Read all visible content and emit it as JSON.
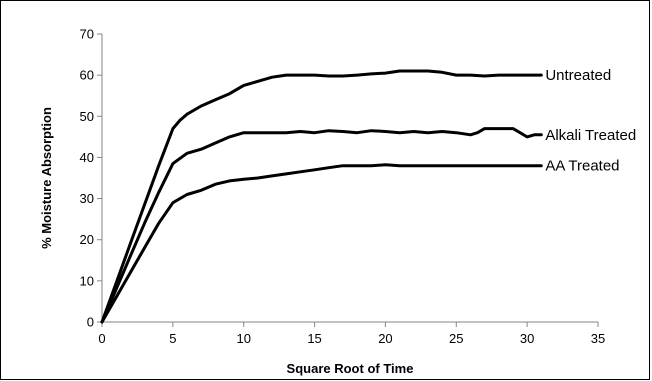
{
  "chart_data": {
    "type": "line",
    "title": "",
    "xlabel": "Square Root of Time",
    "ylabel": "% Moisture Absorption",
    "xlim": [
      0,
      35
    ],
    "ylim": [
      0,
      70
    ],
    "xticks": [
      0,
      5,
      10,
      15,
      20,
      25,
      30,
      35
    ],
    "yticks": [
      0,
      10,
      20,
      30,
      40,
      50,
      60,
      70
    ],
    "grid": false,
    "legend": "none; series are labeled inline at the right end of each line",
    "line_color": "#000000",
    "series": [
      {
        "name": "Untreated",
        "x": [
          0,
          1,
          2,
          3,
          4,
          5,
          5.5,
          6,
          7,
          8,
          9,
          10,
          11,
          12,
          13,
          14,
          15,
          16,
          17,
          18,
          19,
          20,
          21,
          22,
          23,
          24,
          25,
          26,
          27,
          28,
          29,
          30,
          31
        ],
        "y": [
          0,
          9.5,
          19,
          28.5,
          38,
          47,
          49,
          50.5,
          52.5,
          54,
          55.5,
          57.5,
          58.5,
          59.5,
          60,
          60,
          60,
          59.8,
          59.8,
          60,
          60.3,
          60.5,
          61,
          61,
          61,
          60.7,
          60,
          60,
          59.8,
          60,
          60,
          60,
          60
        ]
      },
      {
        "name": "Alkali Treated",
        "x": [
          0,
          1,
          2,
          3,
          4,
          5,
          6,
          7,
          8,
          9,
          10,
          11,
          12,
          13,
          14,
          15,
          16,
          17,
          18,
          19,
          20,
          21,
          22,
          23,
          24,
          25,
          26,
          26.5,
          27,
          28,
          29,
          29.5,
          30,
          30.5,
          31
        ],
        "y": [
          0,
          8,
          16,
          24,
          31.5,
          38.5,
          41,
          42,
          43.5,
          45,
          46,
          46,
          46,
          46,
          46.3,
          46,
          46.5,
          46.3,
          46,
          46.5,
          46.3,
          46,
          46.3,
          46,
          46.3,
          46,
          45.5,
          46,
          47,
          47,
          47,
          46,
          45,
          45.5,
          45.5
        ]
      },
      {
        "name": "AA Treated",
        "x": [
          0,
          1,
          2,
          3,
          4,
          5,
          6,
          7,
          8,
          9,
          10,
          11,
          12,
          13,
          14,
          15,
          16,
          17,
          18,
          19,
          20,
          21,
          22,
          23,
          24,
          25,
          26,
          27,
          28,
          29,
          30,
          31
        ],
        "y": [
          0,
          6,
          12,
          18,
          24,
          29,
          31,
          32,
          33.5,
          34.3,
          34.7,
          35,
          35.5,
          36,
          36.5,
          37,
          37.5,
          38,
          38,
          38,
          38.2,
          38,
          38,
          38,
          38,
          38,
          38,
          38,
          38,
          38,
          38,
          38
        ]
      }
    ]
  }
}
